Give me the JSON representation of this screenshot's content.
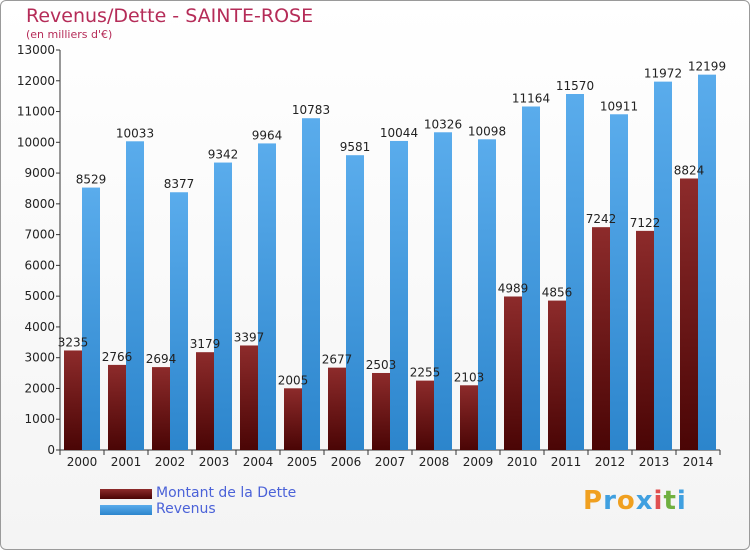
{
  "title": "Revenus/Dette - SAINTE-ROSE",
  "subtitle": "(en milliers d'€)",
  "colors": {
    "title": "#b52c58",
    "debt": "#8a2121",
    "revenue": "#3d9be0",
    "legend_text": "#4b62d8"
  },
  "legend": [
    {
      "label": "Montant de la Dette",
      "color": "#7a1717"
    },
    {
      "label": "Revenus",
      "color": "#3d9be0"
    }
  ],
  "logo": {
    "letters": [
      "P",
      "r",
      "o",
      "x",
      "i",
      "t",
      "i"
    ],
    "colors": [
      "#f0a020",
      "#40a0e0",
      "#f0a020",
      "#40a0e0",
      "#e05050",
      "#70b040",
      "#40a0e0"
    ]
  },
  "chart_data": {
    "type": "bar",
    "categories": [
      "2000",
      "2001",
      "2002",
      "2003",
      "2004",
      "2005",
      "2006",
      "2007",
      "2008",
      "2009",
      "2010",
      "2011",
      "2012",
      "2013",
      "2014"
    ],
    "series": [
      {
        "name": "Montant de la Dette",
        "values": [
          3235,
          2766,
          2694,
          3179,
          3397,
          2005,
          2677,
          2503,
          2255,
          2103,
          4989,
          4856,
          7242,
          7122,
          8824
        ],
        "labels": [
          "3235",
          "2766",
          "2694",
          "3179",
          "3397",
          "2005",
          "2677",
          "2503",
          "2255",
          "2103",
          "4989",
          "4856",
          "7242",
          "7122",
          "8824"
        ]
      },
      {
        "name": "Revenus",
        "values": [
          8529,
          10033,
          8377,
          9342,
          9964,
          10783,
          9581,
          10044,
          10326,
          10098,
          11164,
          11570,
          10911,
          11972,
          12199
        ],
        "labels": [
          "8529",
          "10033",
          "8377",
          "9342",
          "9964",
          "10783",
          "9581",
          "10044",
          "10326",
          "10098",
          "11164",
          "11570",
          "10911",
          "11972",
          "12199"
        ]
      }
    ],
    "ylim": [
      0,
      13000
    ],
    "yticks": [
      0,
      1000,
      2000,
      3000,
      4000,
      5000,
      6000,
      7000,
      8000,
      9000,
      10000,
      11000,
      12000,
      13000
    ],
    "grid": false,
    "legend_position": "bottom-left"
  }
}
